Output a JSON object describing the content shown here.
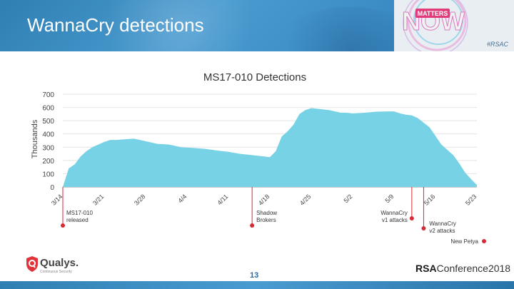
{
  "slide": {
    "title": "WannaCry detections",
    "hashtag": "#RSAC",
    "page_number": "13",
    "logo_text": "NOW",
    "logo_badge": "MATTERS",
    "footer_left": {
      "name": "Qualys.",
      "tagline": "Continuous Security"
    },
    "footer_right": {
      "brand": "RSA",
      "event": "Conference2018"
    }
  },
  "colors": {
    "area_fill": "#76d2e4",
    "marker": "#d62b33",
    "title_band": "#3b8cc4"
  },
  "chart_data": {
    "type": "area",
    "title": "MS17-010 Detections",
    "ylabel": "Thousands",
    "xlabel": "",
    "ylim": [
      0,
      700
    ],
    "yticks": [
      0,
      100,
      200,
      300,
      400,
      500,
      600,
      700
    ],
    "grid": true,
    "x_ticks": [
      "3/14",
      "3/21",
      "3/28",
      "4/4",
      "4/11",
      "4/18",
      "4/25",
      "5/2",
      "5/9",
      "5/16",
      "5/23"
    ],
    "x_start": "3/14",
    "x_end": "5/23",
    "series": [
      {
        "x": [
          "3/14",
          "3/15",
          "3/16",
          "3/17",
          "3/18",
          "3/19",
          "3/20",
          "3/21",
          "3/22",
          "3/23",
          "3/24",
          "3/26",
          "3/28",
          "3/30",
          "4/1",
          "4/3",
          "4/5",
          "4/7",
          "4/9",
          "4/11",
          "4/13",
          "4/15",
          "4/17",
          "4/18",
          "4/19",
          "4/20",
          "4/21",
          "4/22",
          "4/23",
          "4/24",
          "4/25",
          "4/26",
          "4/28",
          "4/30",
          "5/1",
          "5/2",
          "5/4",
          "5/6",
          "5/8",
          "5/9",
          "5/10",
          "5/11",
          "5/12",
          "5/13",
          "5/15",
          "5/17",
          "5/19",
          "5/20",
          "5/21",
          "5/22",
          "5/23"
        ],
        "values": [
          0,
          140,
          170,
          230,
          270,
          300,
          320,
          340,
          355,
          355,
          358,
          365,
          345,
          325,
          320,
          300,
          295,
          288,
          275,
          265,
          250,
          240,
          230,
          225,
          270,
          380,
          420,
          470,
          550,
          580,
          595,
          590,
          580,
          560,
          560,
          555,
          560,
          568,
          570,
          570,
          555,
          545,
          540,
          520,
          450,
          320,
          240,
          180,
          110,
          60,
          15
        ]
      }
    ],
    "annotations": [
      {
        "x": "3/14",
        "label": [
          "MS17-010",
          "released"
        ]
      },
      {
        "x": "4/15",
        "label": [
          "Shadow",
          "Brokers"
        ]
      },
      {
        "x": "5/12",
        "label": [
          "WannaCry",
          "v1 attacks"
        ]
      },
      {
        "x": "5/14",
        "label": [
          "WannaCry",
          "v2 attacks"
        ]
      },
      {
        "x": "5/23",
        "label": [
          "New Petya"
        ]
      }
    ]
  }
}
